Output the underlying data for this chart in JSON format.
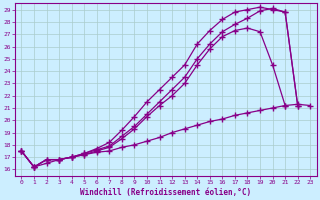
{
  "xlabel": "Windchill (Refroidissement éolien,°C)",
  "background_color": "#cceeff",
  "grid_color": "#aacccc",
  "line_color": "#880088",
  "xlim": [
    -0.5,
    23.5
  ],
  "ylim": [
    15.5,
    29.5
  ],
  "xticks": [
    0,
    1,
    2,
    3,
    4,
    5,
    6,
    7,
    8,
    9,
    10,
    11,
    12,
    13,
    14,
    15,
    16,
    17,
    18,
    19,
    20,
    21,
    22,
    23
  ],
  "yticks": [
    16,
    17,
    18,
    19,
    20,
    21,
    22,
    23,
    24,
    25,
    26,
    27,
    28,
    29
  ],
  "lines": [
    {
      "x": [
        0,
        1,
        2,
        3,
        4,
        5,
        6,
        7,
        8,
        9,
        10,
        11,
        12,
        13,
        14,
        15,
        16,
        17,
        18,
        19,
        20,
        21,
        22
      ],
      "y": [
        17.5,
        16.2,
        16.8,
        16.8,
        17.0,
        17.3,
        17.7,
        18.2,
        19.2,
        20.3,
        21.5,
        22.5,
        23.5,
        24.5,
        26.2,
        27.3,
        28.2,
        28.8,
        29.0,
        29.2,
        29.0,
        28.8,
        21.2
      ]
    },
    {
      "x": [
        0,
        1,
        2,
        3,
        4,
        5,
        6,
        7,
        8,
        9,
        10,
        11,
        12,
        13,
        14,
        15,
        16,
        17,
        18,
        19,
        20,
        21,
        22
      ],
      "y": [
        17.5,
        16.2,
        16.8,
        16.8,
        17.0,
        17.3,
        17.6,
        17.9,
        18.7,
        19.5,
        20.5,
        21.5,
        22.5,
        23.5,
        25.0,
        26.2,
        27.2,
        27.8,
        28.3,
        28.9,
        29.1,
        28.8,
        21.2
      ]
    },
    {
      "x": [
        0,
        1,
        2,
        3,
        4,
        5,
        6,
        7,
        8,
        9,
        10,
        11,
        12,
        13,
        14,
        15,
        16,
        17,
        18,
        19,
        20,
        21
      ],
      "y": [
        17.5,
        16.2,
        16.8,
        16.8,
        17.0,
        17.2,
        17.5,
        17.8,
        18.5,
        19.3,
        20.3,
        21.2,
        22.0,
        23.0,
        24.5,
        25.8,
        26.8,
        27.3,
        27.5,
        27.2,
        24.5,
        21.2
      ]
    },
    {
      "x": [
        0,
        1,
        2,
        3,
        4,
        5,
        6,
        7,
        8,
        9,
        10,
        11,
        12,
        13,
        14,
        15,
        16,
        17,
        18,
        19,
        20,
        21,
        22,
        23
      ],
      "y": [
        17.5,
        16.2,
        16.5,
        16.8,
        17.0,
        17.2,
        17.4,
        17.5,
        17.8,
        18.0,
        18.3,
        18.6,
        19.0,
        19.3,
        19.6,
        19.9,
        20.1,
        20.4,
        20.6,
        20.8,
        21.0,
        21.2,
        21.3,
        21.2
      ]
    }
  ]
}
